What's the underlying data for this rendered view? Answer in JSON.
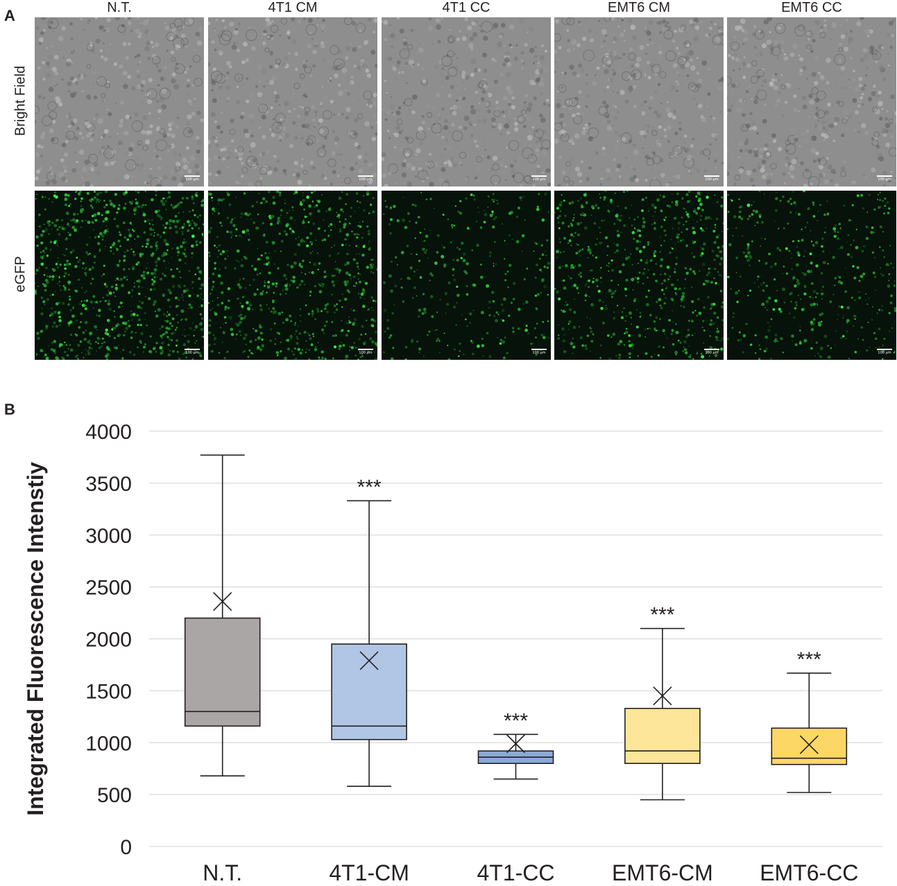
{
  "panel_a": {
    "letter": "A",
    "columns": [
      "N.T.",
      "4T1 CM",
      "4T1 CC",
      "EMT6 CM",
      "EMT6 CC"
    ],
    "rows": [
      "Bright Field",
      "eGFP"
    ],
    "scale_bar_label": "100 µm",
    "colors": {
      "bright_field": "#8c8c8c",
      "egfp": "#2fbf3a"
    }
  },
  "panel_b": {
    "letter": "B"
  },
  "chart_data": {
    "type": "box",
    "title": "",
    "xlabel": "",
    "ylabel": "Integrated Fluorescence Intenstiy",
    "ylim": [
      0,
      4000
    ],
    "yticks": [
      0,
      500,
      1000,
      1500,
      2000,
      2500,
      3000,
      3500,
      4000
    ],
    "grid": true,
    "categories": [
      "N.T.",
      "4T1-CM",
      "4T1-CC",
      "EMT6-CM",
      "EMT6-CC"
    ],
    "boxes": [
      {
        "category": "N.T.",
        "min": 680,
        "q1": 1160,
        "median": 1300,
        "q3": 2200,
        "max": 3770,
        "mean": 2360,
        "color": "#aaa6a6",
        "significance": ""
      },
      {
        "category": "4T1-CM",
        "min": 580,
        "q1": 1030,
        "median": 1160,
        "q3": 1950,
        "max": 3330,
        "mean": 1790,
        "color": "#b1c5e4",
        "significance": "***"
      },
      {
        "category": "4T1-CC",
        "min": 650,
        "q1": 800,
        "median": 860,
        "q3": 920,
        "max": 1080,
        "mean": 990,
        "color": "#8ba9d8",
        "significance": "***"
      },
      {
        "category": "EMT6-CM",
        "min": 450,
        "q1": 800,
        "median": 920,
        "q3": 1330,
        "max": 2100,
        "mean": 1450,
        "color": "#fde59a",
        "significance": "***"
      },
      {
        "category": "EMT6-CC",
        "min": 520,
        "q1": 790,
        "median": 850,
        "q3": 1140,
        "max": 1670,
        "mean": 980,
        "color": "#fdd765",
        "significance": "***"
      }
    ]
  }
}
